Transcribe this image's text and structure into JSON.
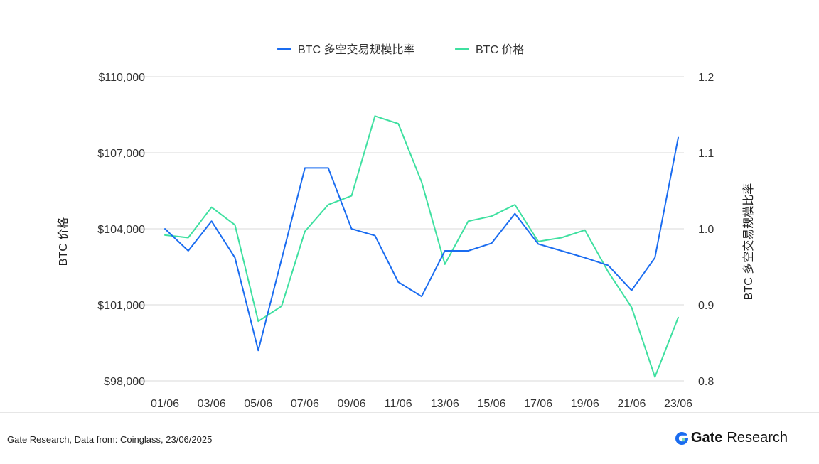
{
  "chart_data": {
    "type": "line",
    "categories": [
      "01/06",
      "02/06",
      "03/06",
      "04/06",
      "05/06",
      "06/06",
      "07/06",
      "08/06",
      "09/06",
      "10/06",
      "11/06",
      "12/06",
      "13/06",
      "14/06",
      "15/06",
      "16/06",
      "17/06",
      "18/06",
      "19/06",
      "20/06",
      "21/06",
      "22/06",
      "23/06"
    ],
    "x_tick_labels": [
      "01/06",
      "03/06",
      "05/06",
      "07/06",
      "09/06",
      "11/06",
      "13/06",
      "15/06",
      "17/06",
      "19/06",
      "21/06",
      "23/06"
    ],
    "series": [
      {
        "name": "BTC 多空交易规模比率",
        "axis": "right",
        "color": "#1a6cf0",
        "values": [
          1.0,
          0.971,
          1.01,
          0.962,
          0.84,
          0.96,
          1.08,
          1.08,
          1.0,
          0.991,
          0.93,
          0.911,
          0.971,
          0.971,
          0.981,
          1.02,
          0.98,
          0.971,
          0.962,
          0.952,
          0.919,
          0.962,
          1.12
        ]
      },
      {
        "name": "BTC 价格",
        "axis": "left",
        "color": "#3ee0a0",
        "values": [
          103750,
          103650,
          104850,
          104150,
          100350,
          100950,
          103900,
          104950,
          105300,
          108450,
          108150,
          105850,
          102600,
          104300,
          104500,
          104950,
          103500,
          103650,
          103950,
          102300,
          100900,
          98150,
          100500
        ]
      }
    ],
    "y_left": {
      "label": "BTC 价格",
      "ylim": [
        98000,
        110000
      ],
      "ticks": [
        98000,
        101000,
        104000,
        107000,
        110000
      ],
      "tick_labels": [
        "$98,000",
        "$101,000",
        "$104,000",
        "$107,000",
        "$110,000"
      ]
    },
    "y_right": {
      "label": "BTC 多空交易规模比率",
      "ylim": [
        0.8,
        1.2
      ],
      "ticks": [
        0.8,
        0.9,
        1.0,
        1.1,
        1.2
      ],
      "tick_labels": [
        "0.8",
        "0.9",
        "1.0",
        "1.1",
        "1.2"
      ]
    },
    "grid": "horizontal",
    "legend_position": "top-center"
  },
  "footer": {
    "source": "Gate Research, Data from: Coinglass, 23/06/2025",
    "brand_name": "Gate",
    "brand_sub": "Research",
    "brand_color": "#1a6cf0"
  }
}
